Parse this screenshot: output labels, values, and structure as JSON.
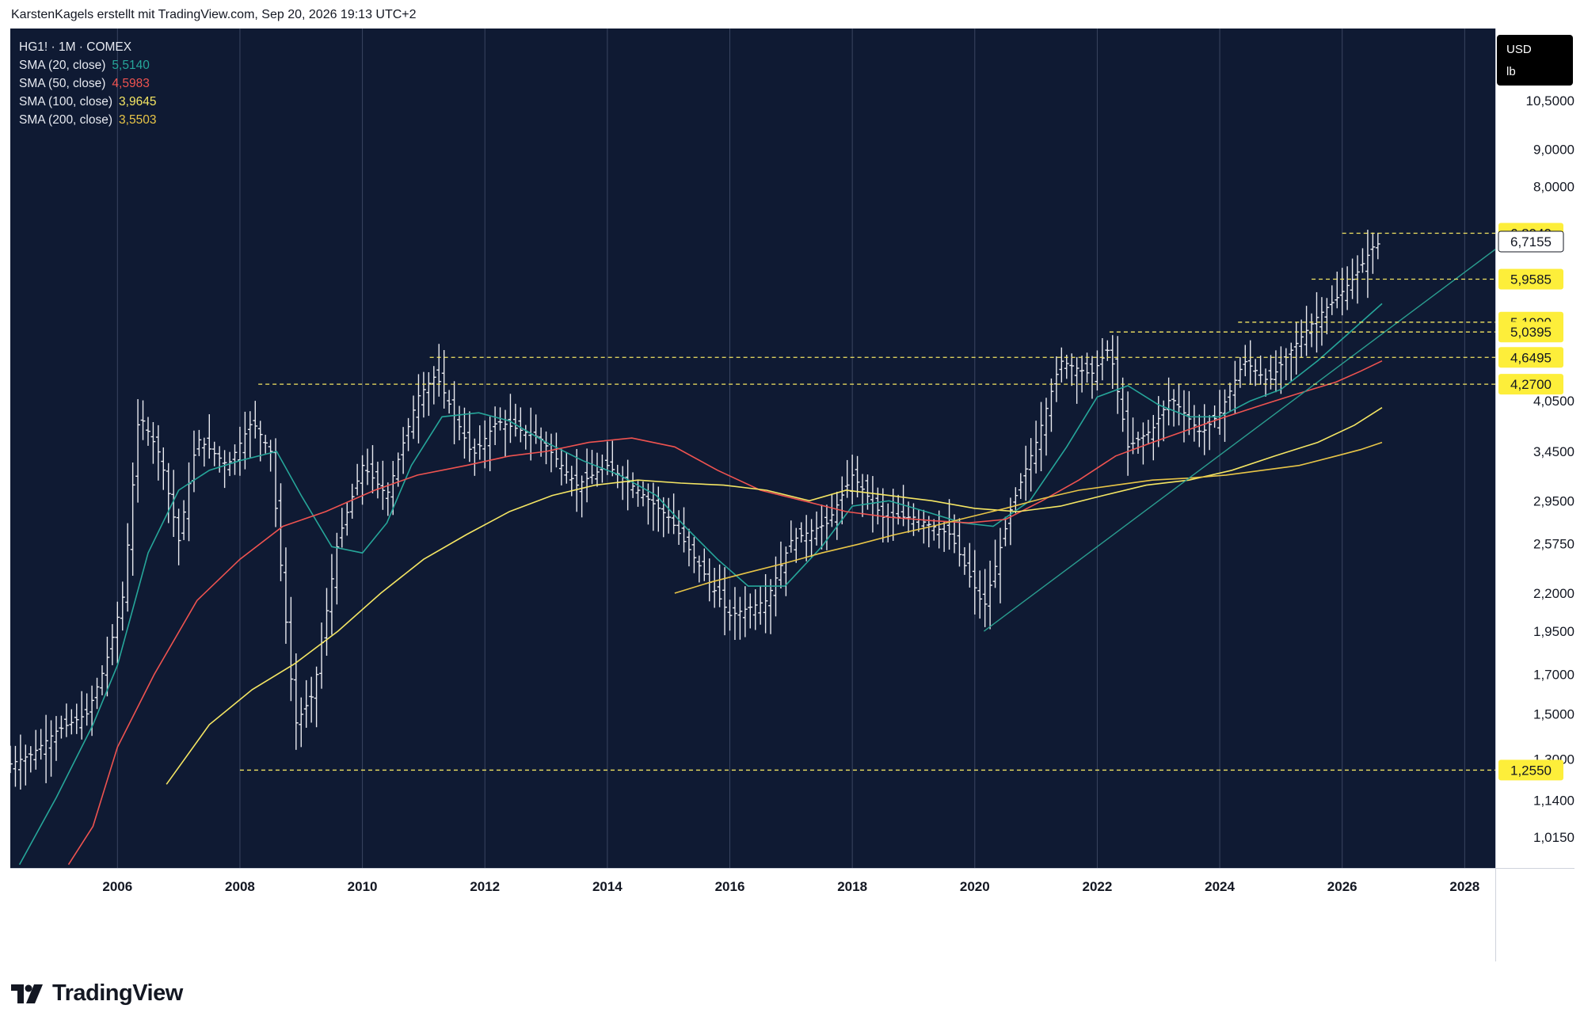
{
  "header": {
    "credit": "KarstenKagels erstellt mit TradingView.com, Sep 20, 2026 19:13 UTC+2"
  },
  "legend": {
    "symbol": "HG1! · 1M · COMEX",
    "indicators": [
      {
        "label": "SMA (20, close)",
        "value": "5,5140",
        "color": "#26a69a"
      },
      {
        "label": "SMA (50, close)",
        "value": "4,5983",
        "color": "#ef5350"
      },
      {
        "label": "SMA (100, close)",
        "value": "3,9645",
        "color": "#f5e663"
      },
      {
        "label": "SMA (200, close)",
        "value": "3,5503",
        "color": "#e8c547"
      }
    ]
  },
  "units": {
    "currency": "USD",
    "measure": "lb"
  },
  "branding": {
    "name": "TradingView"
  },
  "colors": {
    "background": "#0f1a33",
    "grid": "#3a4560",
    "axis_text": "#d1d4dc",
    "bar": "#e9eaf0",
    "level": "#f5e663",
    "label_fill": "#fdee3a",
    "last_price_fill": "#ffffff",
    "trendline": "#2a9d8f"
  },
  "chart_data": {
    "type": "ohlc",
    "symbol": "HG1!",
    "interval": "1M",
    "exchange": "COMEX",
    "y_scale": "log",
    "ylim": [
      0.92,
      13.2
    ],
    "xlim": [
      2004.25,
      2028.5
    ],
    "x_ticks": [
      "2006",
      "2008",
      "2010",
      "2012",
      "2014",
      "2016",
      "2018",
      "2020",
      "2022",
      "2024",
      "2026",
      "2028"
    ],
    "y_ticks": [
      "1,0150",
      "1,1400",
      "1,3000",
      "1,5000",
      "1,7000",
      "1,9500",
      "2,2000",
      "2,5750",
      "2,9500",
      "3,4500",
      "4,0500",
      "8,0000",
      "9,0000",
      "10,5000"
    ],
    "levels": [
      {
        "label": "6,8940",
        "value": 6.894,
        "from": 2026.0
      },
      {
        "label": "5,9585",
        "value": 5.9585,
        "from": 2025.5
      },
      {
        "label": "5,1990",
        "value": 5.199,
        "from": 2024.3
      },
      {
        "label": "5,0395",
        "value": 5.0395,
        "from": 2022.2
      },
      {
        "label": "4,6495",
        "value": 4.6495,
        "from": 2011.1
      },
      {
        "label": "4,2700",
        "value": 4.27,
        "from": 2008.3
      },
      {
        "label": "1,2550",
        "value": 1.255,
        "from": 2008.0
      }
    ],
    "last_price": {
      "label": "6,7155",
      "value": 6.7155
    },
    "trendline": {
      "x": [
        2020.15,
        2028.5
      ],
      "y": [
        1.95,
        6.55
      ]
    },
    "price_path": [
      [
        2004.25,
        1.28
      ],
      [
        2004.6,
        1.32
      ],
      [
        2005.0,
        1.42
      ],
      [
        2005.5,
        1.5
      ],
      [
        2005.8,
        1.75
      ],
      [
        2006.1,
        2.2
      ],
      [
        2006.35,
        3.9
      ],
      [
        2006.7,
        3.4
      ],
      [
        2007.0,
        2.6
      ],
      [
        2007.3,
        3.6
      ],
      [
        2007.8,
        3.3
      ],
      [
        2008.2,
        3.8
      ],
      [
        2008.5,
        3.45
      ],
      [
        2008.9,
        1.45
      ],
      [
        2009.2,
        1.6
      ],
      [
        2009.6,
        2.6
      ],
      [
        2010.0,
        3.3
      ],
      [
        2010.4,
        3.0
      ],
      [
        2010.9,
        4.1
      ],
      [
        2011.2,
        4.4
      ],
      [
        2011.8,
        3.4
      ],
      [
        2012.2,
        3.8
      ],
      [
        2012.9,
        3.6
      ],
      [
        2013.5,
        3.1
      ],
      [
        2014.0,
        3.3
      ],
      [
        2014.5,
        3.05
      ],
      [
        2015.0,
        2.8
      ],
      [
        2015.5,
        2.4
      ],
      [
        2016.0,
        2.05
      ],
      [
        2016.6,
        2.15
      ],
      [
        2017.0,
        2.6
      ],
      [
        2017.6,
        2.75
      ],
      [
        2018.0,
        3.2
      ],
      [
        2018.5,
        2.8
      ],
      [
        2019.0,
        2.8
      ],
      [
        2019.6,
        2.65
      ],
      [
        2020.15,
        2.1
      ],
      [
        2020.6,
        2.9
      ],
      [
        2021.0,
        3.55
      ],
      [
        2021.4,
        4.6
      ],
      [
        2021.9,
        4.4
      ],
      [
        2022.2,
        4.8
      ],
      [
        2022.5,
        3.5
      ],
      [
        2022.9,
        3.7
      ],
      [
        2023.2,
        4.1
      ],
      [
        2023.7,
        3.65
      ],
      [
        2024.0,
        3.9
      ],
      [
        2024.4,
        4.6
      ],
      [
        2024.8,
        4.3
      ],
      [
        2025.2,
        4.8
      ],
      [
        2025.6,
        5.3
      ],
      [
        2025.9,
        5.6
      ],
      [
        2026.2,
        6.0
      ],
      [
        2026.5,
        6.6
      ],
      [
        2026.65,
        6.7155
      ]
    ],
    "series": [
      {
        "name": "SMA (20, close)",
        "color": "#26a69a",
        "points": [
          [
            2004.4,
            0.93
          ],
          [
            2005.0,
            1.15
          ],
          [
            2005.6,
            1.45
          ],
          [
            2006.0,
            1.75
          ],
          [
            2006.5,
            2.5
          ],
          [
            2007.0,
            3.05
          ],
          [
            2007.5,
            3.25
          ],
          [
            2008.0,
            3.35
          ],
          [
            2008.6,
            3.45
          ],
          [
            2009.0,
            3.0
          ],
          [
            2009.5,
            2.55
          ],
          [
            2010.0,
            2.5
          ],
          [
            2010.4,
            2.75
          ],
          [
            2010.8,
            3.3
          ],
          [
            2011.3,
            3.85
          ],
          [
            2011.9,
            3.9
          ],
          [
            2012.4,
            3.8
          ],
          [
            2013.0,
            3.55
          ],
          [
            2013.6,
            3.35
          ],
          [
            2014.2,
            3.2
          ],
          [
            2014.8,
            3.0
          ],
          [
            2015.3,
            2.7
          ],
          [
            2015.8,
            2.45
          ],
          [
            2016.3,
            2.25
          ],
          [
            2016.9,
            2.25
          ],
          [
            2017.5,
            2.55
          ],
          [
            2018.0,
            2.9
          ],
          [
            2018.6,
            2.95
          ],
          [
            2019.2,
            2.85
          ],
          [
            2019.8,
            2.75
          ],
          [
            2020.3,
            2.72
          ],
          [
            2020.9,
            2.95
          ],
          [
            2021.5,
            3.5
          ],
          [
            2022.0,
            4.1
          ],
          [
            2022.5,
            4.25
          ],
          [
            2023.0,
            4.0
          ],
          [
            2023.5,
            3.85
          ],
          [
            2024.0,
            3.85
          ],
          [
            2024.5,
            4.05
          ],
          [
            2025.0,
            4.2
          ],
          [
            2025.6,
            4.6
          ],
          [
            2026.2,
            5.1
          ],
          [
            2026.65,
            5.514
          ]
        ]
      },
      {
        "name": "SMA (50, close)",
        "color": "#ef5350",
        "points": [
          [
            2005.2,
            0.93
          ],
          [
            2005.6,
            1.05
          ],
          [
            2006.0,
            1.35
          ],
          [
            2006.6,
            1.7
          ],
          [
            2007.3,
            2.15
          ],
          [
            2008.0,
            2.45
          ],
          [
            2008.7,
            2.72
          ],
          [
            2009.4,
            2.85
          ],
          [
            2010.2,
            3.05
          ],
          [
            2010.9,
            3.2
          ],
          [
            2011.7,
            3.3
          ],
          [
            2012.4,
            3.4
          ],
          [
            2013.0,
            3.45
          ],
          [
            2013.7,
            3.55
          ],
          [
            2014.4,
            3.6
          ],
          [
            2015.1,
            3.5
          ],
          [
            2015.8,
            3.25
          ],
          [
            2016.5,
            3.05
          ],
          [
            2017.2,
            2.95
          ],
          [
            2017.9,
            2.85
          ],
          [
            2018.6,
            2.8
          ],
          [
            2019.3,
            2.77
          ],
          [
            2019.9,
            2.75
          ],
          [
            2020.5,
            2.78
          ],
          [
            2021.1,
            2.95
          ],
          [
            2021.7,
            3.15
          ],
          [
            2022.3,
            3.4
          ],
          [
            2022.9,
            3.55
          ],
          [
            2023.5,
            3.7
          ],
          [
            2024.1,
            3.85
          ],
          [
            2024.7,
            4.0
          ],
          [
            2025.3,
            4.15
          ],
          [
            2025.9,
            4.3
          ],
          [
            2026.3,
            4.45
          ],
          [
            2026.65,
            4.598
          ]
        ]
      },
      {
        "name": "SMA (100, close)",
        "color": "#f5e663",
        "points": [
          [
            2006.8,
            1.2
          ],
          [
            2007.5,
            1.45
          ],
          [
            2008.2,
            1.62
          ],
          [
            2008.9,
            1.76
          ],
          [
            2009.6,
            1.95
          ],
          [
            2010.3,
            2.2
          ],
          [
            2011.0,
            2.45
          ],
          [
            2011.7,
            2.65
          ],
          [
            2012.4,
            2.85
          ],
          [
            2013.1,
            3.0
          ],
          [
            2013.8,
            3.1
          ],
          [
            2014.5,
            3.15
          ],
          [
            2015.2,
            3.12
          ],
          [
            2015.9,
            3.1
          ],
          [
            2016.6,
            3.05
          ],
          [
            2017.3,
            2.95
          ],
          [
            2017.9,
            3.05
          ],
          [
            2018.6,
            3.0
          ],
          [
            2019.3,
            2.95
          ],
          [
            2020.0,
            2.88
          ],
          [
            2020.7,
            2.85
          ],
          [
            2021.4,
            2.9
          ],
          [
            2022.1,
            3.0
          ],
          [
            2022.8,
            3.1
          ],
          [
            2023.5,
            3.15
          ],
          [
            2024.2,
            3.25
          ],
          [
            2024.9,
            3.4
          ],
          [
            2025.6,
            3.55
          ],
          [
            2026.2,
            3.75
          ],
          [
            2026.65,
            3.9645
          ]
        ]
      },
      {
        "name": "SMA (200, close)",
        "color": "#e8c547",
        "points": [
          [
            2015.1,
            2.2
          ],
          [
            2015.7,
            2.28
          ],
          [
            2016.3,
            2.35
          ],
          [
            2016.9,
            2.42
          ],
          [
            2017.5,
            2.5
          ],
          [
            2018.1,
            2.57
          ],
          [
            2018.7,
            2.65
          ],
          [
            2019.3,
            2.72
          ],
          [
            2019.9,
            2.8
          ],
          [
            2020.5,
            2.88
          ],
          [
            2021.1,
            2.97
          ],
          [
            2021.7,
            3.05
          ],
          [
            2022.3,
            3.1
          ],
          [
            2022.9,
            3.15
          ],
          [
            2023.5,
            3.17
          ],
          [
            2024.1,
            3.2
          ],
          [
            2024.7,
            3.25
          ],
          [
            2025.3,
            3.3
          ],
          [
            2025.9,
            3.4
          ],
          [
            2026.3,
            3.47
          ],
          [
            2026.65,
            3.5503
          ]
        ]
      }
    ]
  }
}
